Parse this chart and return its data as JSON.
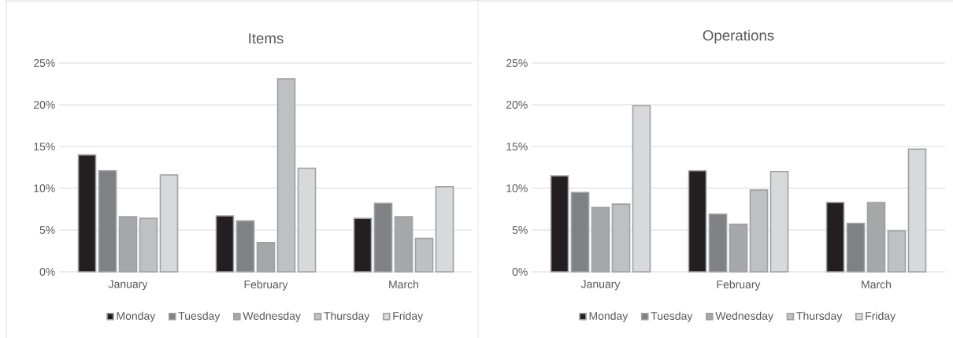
{
  "chart_data": [
    {
      "type": "bar",
      "title": "Items",
      "categories": [
        "January",
        "February",
        "March"
      ],
      "series": [
        {
          "name": "Monday",
          "color": "#231f20",
          "values": [
            14.0,
            6.7,
            6.4
          ]
        },
        {
          "name": "Tuesday",
          "color": "#808184",
          "values": [
            12.1,
            6.1,
            8.2
          ]
        },
        {
          "name": "Wednesday",
          "color": "#a6a7a9",
          "values": [
            6.6,
            3.5,
            6.6
          ]
        },
        {
          "name": "Thursday",
          "color": "#bfc0c2",
          "values": [
            6.4,
            23.1,
            4.0
          ]
        },
        {
          "name": "Friday",
          "color": "#d8d9da",
          "values": [
            11.6,
            12.4,
            10.2
          ]
        }
      ],
      "ylim": [
        0,
        25
      ],
      "yticks": [
        {
          "value": 0,
          "label": "0%"
        },
        {
          "value": 5,
          "label": "5%"
        },
        {
          "value": 10,
          "label": "10%"
        },
        {
          "value": 15,
          "label": "15%"
        },
        {
          "value": 20,
          "label": "20%"
        },
        {
          "value": 25,
          "label": "25%"
        }
      ],
      "grid": "y",
      "legend": "bottom"
    },
    {
      "type": "bar",
      "title": "Operations",
      "categories": [
        "January",
        "February",
        "March"
      ],
      "series": [
        {
          "name": "Monday",
          "color": "#231f20",
          "values": [
            11.5,
            12.1,
            8.3
          ]
        },
        {
          "name": "Tuesday",
          "color": "#808184",
          "values": [
            9.5,
            6.9,
            5.8
          ]
        },
        {
          "name": "Wednesday",
          "color": "#a6a7a9",
          "values": [
            7.7,
            5.7,
            8.3
          ]
        },
        {
          "name": "Thursday",
          "color": "#bfc0c2",
          "values": [
            8.1,
            9.8,
            4.9
          ]
        },
        {
          "name": "Friday",
          "color": "#d8d9da",
          "values": [
            19.9,
            12.0,
            14.7
          ]
        }
      ],
      "ylim": [
        0,
        25
      ],
      "yticks": [
        {
          "value": 0,
          "label": "0%"
        },
        {
          "value": 5,
          "label": "5%"
        },
        {
          "value": 10,
          "label": "10%"
        },
        {
          "value": 15,
          "label": "15%"
        },
        {
          "value": 20,
          "label": "20%"
        },
        {
          "value": 25,
          "label": "25%"
        }
      ],
      "grid": "y",
      "legend": "bottom"
    }
  ]
}
